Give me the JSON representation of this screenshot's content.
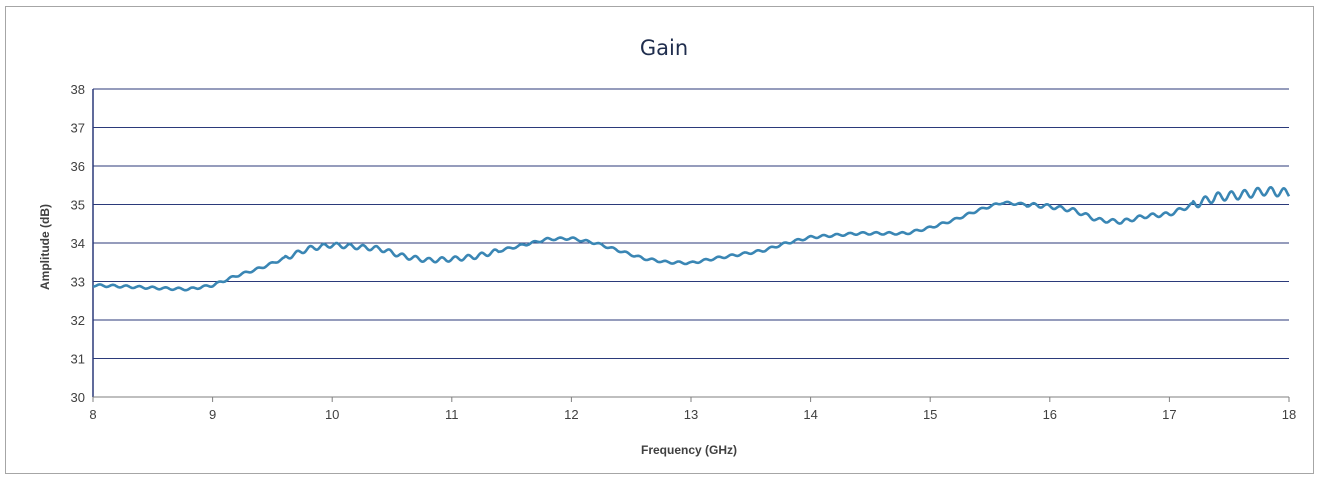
{
  "chart_data": {
    "type": "line",
    "title": "Gain",
    "xlabel": "Frequency (GHz)",
    "ylabel": "Amplitude (dB)",
    "xlim": [
      8,
      18
    ],
    "ylim": [
      30,
      38
    ],
    "xticks": [
      "8",
      "9",
      "10",
      "11",
      "12",
      "13",
      "14",
      "15",
      "16",
      "17",
      "18"
    ],
    "yticks": [
      "30",
      "31",
      "32",
      "33",
      "34",
      "35",
      "36",
      "37",
      "38"
    ],
    "grid": "horizontal",
    "legend": "none",
    "line_color": "#3a86b4",
    "gridline_color": "#2b3a7a",
    "series": [
      {
        "x": [
          8.0,
          8.2,
          8.4,
          8.6,
          8.8,
          9.0,
          9.2,
          9.4,
          9.6,
          9.8,
          10.0,
          10.2,
          10.4,
          10.6,
          10.8,
          11.0,
          11.2,
          11.4,
          11.6,
          11.8,
          12.0,
          12.2,
          12.4,
          12.6,
          12.8,
          13.0,
          13.2,
          13.4,
          13.6,
          13.8,
          14.0,
          14.2,
          14.4,
          14.6,
          14.8,
          15.0,
          15.2,
          15.4,
          15.6,
          15.8,
          16.0,
          16.2,
          16.4,
          16.6,
          16.8,
          17.0,
          17.2,
          17.4,
          17.6,
          17.8,
          18.0
        ],
        "y": [
          32.9,
          32.88,
          32.85,
          32.82,
          32.8,
          32.9,
          33.15,
          33.35,
          33.6,
          33.85,
          33.95,
          33.9,
          33.85,
          33.65,
          33.55,
          33.58,
          33.65,
          33.8,
          33.95,
          34.1,
          34.12,
          34.0,
          33.8,
          33.6,
          33.5,
          33.48,
          33.6,
          33.7,
          33.8,
          34.0,
          34.15,
          34.2,
          34.25,
          34.25,
          34.25,
          34.4,
          34.6,
          34.85,
          35.05,
          35.0,
          34.95,
          34.85,
          34.6,
          34.55,
          34.7,
          34.75,
          35.0,
          35.2,
          35.25,
          35.35,
          35.3
        ]
      }
    ]
  }
}
